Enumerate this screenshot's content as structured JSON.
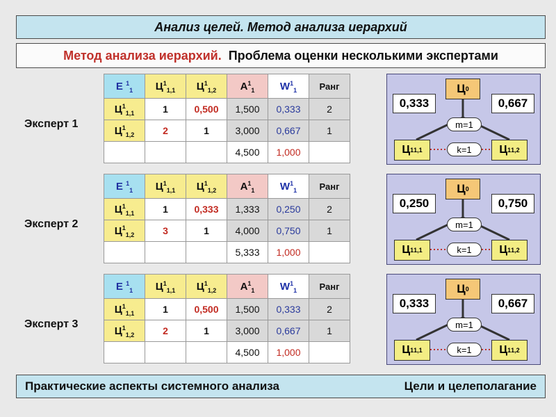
{
  "header": {
    "title": "Анализ целей. Метод анализа иерархий"
  },
  "subtitle": {
    "accent": "Метод анализа иерархий.",
    "text": "Проблема оценки несколькими экспертами"
  },
  "footer": {
    "left": "Практические аспекты системного анализа",
    "right": "Цели и целеполагание"
  },
  "table_header": {
    "e": "E",
    "e_sup": "1",
    "e_sub": "1",
    "c11": "Ц",
    "c11_sup": "1",
    "c11_sub": "1,1",
    "c12": "Ц",
    "c12_sup": "1",
    "c12_sub": "1,2",
    "a": "A",
    "a_sup": "1",
    "a_sub": "1",
    "w": "W",
    "w_sup": "1",
    "w_sub": "1",
    "rank": "Ранг"
  },
  "row_labels": {
    "r1": "Ц",
    "r1_sup": "1",
    "r1_sub": "1,1",
    "r2": "Ц",
    "r2_sup": "1",
    "r2_sub": "1,2"
  },
  "experts": [
    {
      "label": "Эксперт 1",
      "rows": [
        {
          "c1": "1",
          "c2": "0,500",
          "a": "1,500",
          "w": "0,333",
          "rank": "2"
        },
        {
          "c1": "2",
          "c2": "1",
          "a": "3,000",
          "w": "0,667",
          "rank": "1"
        }
      ],
      "totals": {
        "a": "4,500",
        "w": "1,000"
      },
      "diagram": {
        "root": "Ц",
        "root_sub": "0",
        "w_left": "0,333",
        "w_right": "0,667",
        "m": "m=1",
        "k": "k=1"
      }
    },
    {
      "label": "Эксперт 2",
      "rows": [
        {
          "c1": "1",
          "c2": "0,333",
          "a": "1,333",
          "w": "0,250",
          "rank": "2"
        },
        {
          "c1": "3",
          "c2": "1",
          "a": "4,000",
          "w": "0,750",
          "rank": "1"
        }
      ],
      "totals": {
        "a": "5,333",
        "w": "1,000"
      },
      "diagram": {
        "root": "Ц",
        "root_sub": "0",
        "w_left": "0,250",
        "w_right": "0,750",
        "m": "m=1",
        "k": "k=1"
      }
    },
    {
      "label": "Эксперт 3",
      "rows": [
        {
          "c1": "1",
          "c2": "0,500",
          "a": "1,500",
          "w": "0,333",
          "rank": "2"
        },
        {
          "c1": "2",
          "c2": "1",
          "a": "3,000",
          "w": "0,667",
          "rank": "1"
        }
      ],
      "totals": {
        "a": "4,500",
        "w": "1,000"
      },
      "diagram": {
        "root": "Ц",
        "root_sub": "0",
        "w_left": "0,333",
        "w_right": "0,667",
        "m": "m=1",
        "k": "k=1"
      }
    }
  ],
  "colors": {
    "title_bg": "#c4e4ef",
    "accent_red": "#c0312b",
    "cell_yellow": "#f7ec8f",
    "cell_pink": "#f3c9c6",
    "cell_cyan": "#a7e0f0",
    "diagram_bg": "#c6c7e8",
    "root_orange": "#f5c777"
  }
}
